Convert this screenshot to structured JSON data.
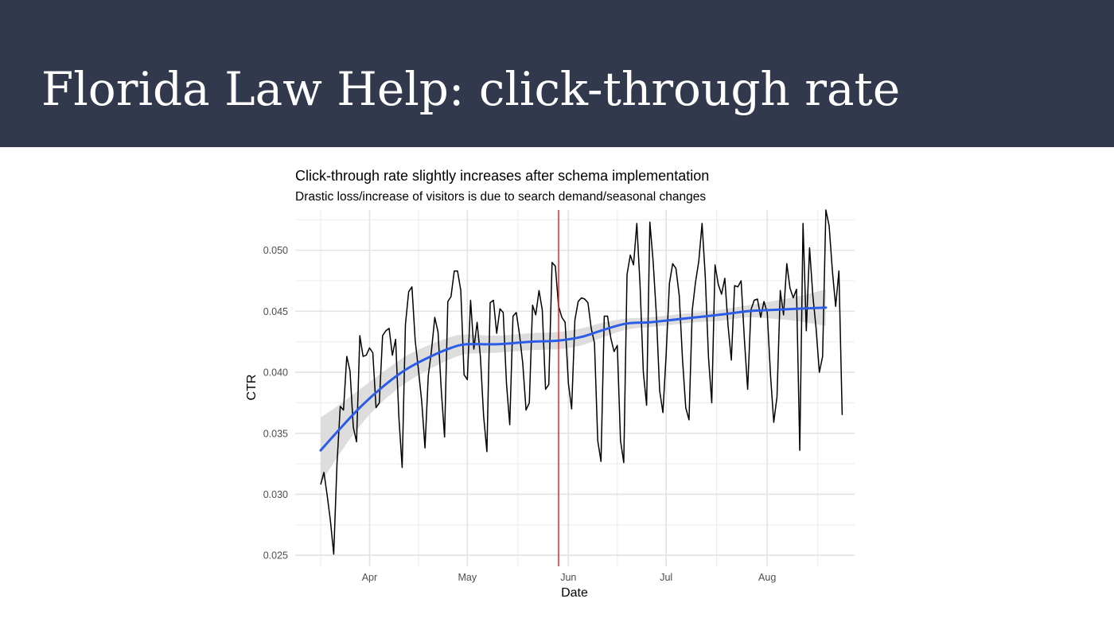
{
  "slide": {
    "title": "Florida Law Help: click-through rate"
  },
  "colors": {
    "header_background": "#32394c",
    "title_text": "#ffffff",
    "ctr_line": "#000000",
    "smooth_line": "#2b5ce6",
    "confidence_band": "#d9d9d9",
    "marker_line": "#e31a1c",
    "grid": "#ebebeb"
  },
  "chart_data": {
    "type": "line",
    "title": "Click-through rate slightly increases after schema implementation",
    "subtitle": "Drastic loss/increase of visitors is due to search demand/seasonal changes",
    "xlabel": "Date",
    "ylabel": "CTR",
    "x_ticks": [
      "Apr",
      "May",
      "Jun",
      "Jul",
      "Aug"
    ],
    "y_ticks": [
      "0.025",
      "0.030",
      "0.035",
      "0.040",
      "0.045",
      "0.050"
    ],
    "x_range": [
      "2023-03-17",
      "2023-08-20"
    ],
    "ylim": [
      0.0241,
      0.0533
    ],
    "grid": true,
    "legend": "none",
    "marker_date": "2023-05-29",
    "series": [
      {
        "kind": "daily",
        "start_date": "2023-03-17",
        "values": [
          0.0308,
          0.0318,
          0.0299,
          0.0278,
          0.0251,
          0.0325,
          0.0372,
          0.0369,
          0.0413,
          0.0401,
          0.0355,
          0.0343,
          0.043,
          0.0413,
          0.0414,
          0.042,
          0.0416,
          0.0371,
          0.0375,
          0.043,
          0.0434,
          0.0436,
          0.0414,
          0.0427,
          0.0363,
          0.0322,
          0.0439,
          0.0466,
          0.047,
          0.0426,
          0.0402,
          0.0376,
          0.0338,
          0.0397,
          0.0418,
          0.0445,
          0.0433,
          0.0385,
          0.0347,
          0.0458,
          0.0462,
          0.0483,
          0.0483,
          0.0467,
          0.0398,
          0.0394,
          0.0459,
          0.0419,
          0.0441,
          0.0413,
          0.0364,
          0.0335,
          0.0457,
          0.0459,
          0.0432,
          0.0452,
          0.0449,
          0.0391,
          0.0357,
          0.0446,
          0.0449,
          0.0431,
          0.0407,
          0.0369,
          0.0375,
          0.0455,
          0.0447,
          0.0467,
          0.0451,
          0.0386,
          0.039,
          0.049,
          0.0487,
          0.0454,
          0.0445,
          0.0441,
          0.0391,
          0.037,
          0.0443,
          0.0458,
          0.0461,
          0.046,
          0.0457,
          0.0436,
          0.0424,
          0.0344,
          0.0327,
          0.0446,
          0.0446,
          0.0428,
          0.0417,
          0.0422,
          0.0344,
          0.0326,
          0.048,
          0.0496,
          0.0488,
          0.0522,
          0.0471,
          0.04,
          0.0373,
          0.0523,
          0.0491,
          0.0447,
          0.0385,
          0.0367,
          0.0415,
          0.0473,
          0.0489,
          0.0485,
          0.0463,
          0.0411,
          0.0371,
          0.0361,
          0.0451,
          0.0474,
          0.0491,
          0.0522,
          0.0479,
          0.0412,
          0.0375,
          0.0488,
          0.0472,
          0.0464,
          0.0477,
          0.0438,
          0.041,
          0.0471,
          0.047,
          0.0475,
          0.0427,
          0.0386,
          0.0451,
          0.0459,
          0.046,
          0.0445,
          0.0458,
          0.0449,
          0.0398,
          0.0359,
          0.038,
          0.0467,
          0.0447,
          0.0489,
          0.0469,
          0.0461,
          0.0468,
          0.0336,
          0.0522,
          0.0434,
          0.0502,
          0.0463,
          0.0436,
          0.04,
          0.0413,
          0.0533,
          0.052,
          0.0483,
          0.0454,
          0.0483,
          0.0365
        ]
      },
      {
        "kind": "smooth",
        "points": [
          [
            "2023-03-17",
            0.0336
          ],
          [
            "2023-03-22",
            0.0351
          ],
          [
            "2023-03-29",
            0.0371
          ],
          [
            "2023-04-05",
            0.0388
          ],
          [
            "2023-04-12",
            0.0402
          ],
          [
            "2023-04-19",
            0.0412
          ],
          [
            "2023-04-26",
            0.042
          ],
          [
            "2023-05-01",
            0.0423
          ],
          [
            "2023-05-10",
            0.0423
          ],
          [
            "2023-05-20",
            0.0425
          ],
          [
            "2023-05-29",
            0.0426
          ],
          [
            "2023-06-05",
            0.0429
          ],
          [
            "2023-06-12",
            0.0435
          ],
          [
            "2023-06-19",
            0.044
          ],
          [
            "2023-06-26",
            0.0441
          ],
          [
            "2023-07-03",
            0.0443
          ],
          [
            "2023-07-10",
            0.0445
          ],
          [
            "2023-07-17",
            0.0447
          ],
          [
            "2023-07-26",
            0.045
          ],
          [
            "2023-08-02",
            0.0451
          ],
          [
            "2023-08-10",
            0.0452
          ],
          [
            "2023-08-19",
            0.0453
          ]
        ],
        "band_upper": [
          0.0363,
          0.0372,
          0.0386,
          0.04,
          0.0413,
          0.0422,
          0.0429,
          0.0431,
          0.043,
          0.0432,
          0.0433,
          0.0436,
          0.0441,
          0.0444,
          0.0445,
          0.0447,
          0.0449,
          0.0451,
          0.0455,
          0.0458,
          0.0462,
          0.0468
        ],
        "band_lower": [
          0.0309,
          0.033,
          0.0356,
          0.0376,
          0.0391,
          0.0402,
          0.0411,
          0.0415,
          0.0416,
          0.0418,
          0.0419,
          0.0422,
          0.0429,
          0.0435,
          0.0437,
          0.0439,
          0.0441,
          0.0442,
          0.0445,
          0.0444,
          0.0442,
          0.0438
        ]
      }
    ]
  }
}
